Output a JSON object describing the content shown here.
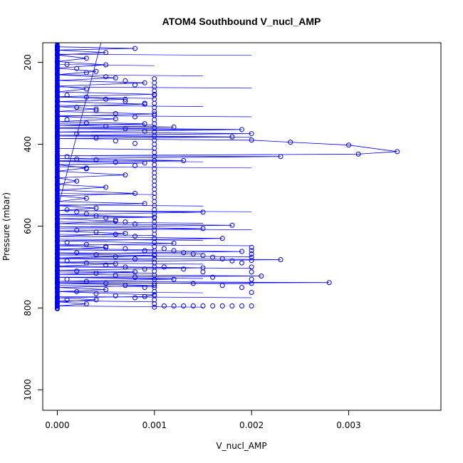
{
  "chart_data": {
    "type": "scatter",
    "title": "ATOM4 Southbound V_nucl_AMP",
    "xlabel": "V_nucl_AMP",
    "ylabel": "Pressure (mbar)",
    "xlim": [
      -0.00015,
      0.00395
    ],
    "ylim": [
      1050,
      152
    ],
    "y_reversed": true,
    "x_ticks": [
      0.0,
      0.001,
      0.002,
      0.003
    ],
    "x_tick_labels": [
      "0.000",
      "0.001",
      "0.002",
      "0.003"
    ],
    "y_ticks": [
      200,
      400,
      600,
      800,
      1000
    ],
    "y_tick_labels": [
      "200",
      "400",
      "600",
      "800",
      "1000"
    ],
    "grid": false,
    "legend": "none",
    "marker": "open-circle",
    "line": true,
    "series_color": "#0000ff",
    "series": [
      {
        "values": [
          [
            0.0,
            800
          ],
          [
            0.0,
            795
          ],
          [
            0.0003,
            790
          ],
          [
            0.0,
            785
          ],
          [
            0.0004,
            780
          ],
          [
            0.0,
            775
          ],
          [
            0.0009,
            772
          ],
          [
            0.001,
            768
          ],
          [
            0.0,
            760
          ],
          [
            0.0005,
            755
          ],
          [
            0.0,
            750
          ],
          [
            0.001,
            745
          ],
          [
            0.0,
            740
          ],
          [
            0.0028,
            738
          ],
          [
            0.0,
            735
          ],
          [
            0.0012,
            730
          ],
          [
            0.0,
            725
          ],
          [
            0.0021,
            722
          ],
          [
            0.0,
            718
          ],
          [
            0.0008,
            712
          ],
          [
            0.0,
            708
          ],
          [
            0.0015,
            702
          ],
          [
            0.0,
            698
          ],
          [
            0.0006,
            692
          ],
          [
            0.0,
            688
          ],
          [
            0.0023,
            682
          ],
          [
            0.0,
            678
          ],
          [
            0.001,
            672
          ],
          [
            0.0,
            668
          ],
          [
            0.0019,
            662
          ],
          [
            0.0,
            658
          ],
          [
            0.0005,
            652
          ],
          [
            0.0,
            648
          ],
          [
            0.0012,
            642
          ],
          [
            0.0,
            636
          ],
          [
            0.0017,
            630
          ],
          [
            0.0,
            625
          ],
          [
            0.0007,
            618
          ],
          [
            0.0,
            612
          ],
          [
            0.0015,
            606
          ],
          [
            0.0,
            602
          ],
          [
            0.0018,
            598
          ],
          [
            0.0,
            594
          ],
          [
            0.0006,
            588
          ],
          [
            0.0,
            582
          ],
          [
            0.001,
            578
          ],
          [
            0.0,
            572
          ],
          [
            0.0015,
            566
          ],
          [
            0.0,
            562
          ],
          [
            0.0004,
            556
          ],
          [
            0.0,
            550
          ],
          [
            0.0009,
            545
          ],
          [
            0.0,
            540
          ],
          [
            0.0003,
            532
          ],
          [
            0.0,
            526
          ],
          [
            0.0008,
            520
          ],
          [
            0.0,
            512
          ],
          [
            0.0005,
            505
          ],
          [
            0.0,
            498
          ],
          [
            0.0002,
            490
          ],
          [
            0.0,
            482
          ],
          [
            0.0007,
            475
          ],
          [
            0.0,
            466
          ],
          [
            0.0003,
            458
          ],
          [
            0.0,
            450
          ],
          [
            0.0009,
            446
          ],
          [
            0.0,
            442
          ],
          [
            0.0013,
            440
          ],
          [
            0.0,
            435
          ],
          [
            0.0023,
            430
          ],
          [
            0.0,
            428
          ],
          [
            0.0031,
            424
          ],
          [
            0.0035,
            418
          ],
          [
            0.003,
            402
          ],
          [
            0.0024,
            395
          ],
          [
            0.002,
            390
          ],
          [
            0.0,
            386
          ],
          [
            0.0018,
            382
          ],
          [
            0.0,
            378
          ],
          [
            0.002,
            374
          ],
          [
            0.0,
            370
          ],
          [
            0.0019,
            364
          ],
          [
            0.0,
            360
          ],
          [
            0.0012,
            358
          ],
          [
            0.0,
            354
          ],
          [
            0.0009,
            350
          ],
          [
            0.0,
            345
          ],
          [
            0.0006,
            338
          ],
          [
            0.0,
            332
          ],
          [
            0.001,
            326
          ],
          [
            0.0,
            320
          ],
          [
            0.0004,
            314
          ],
          [
            0.0,
            308
          ],
          [
            0.0009,
            302
          ],
          [
            0.0,
            296
          ],
          [
            0.0007,
            290
          ],
          [
            0.0,
            284
          ],
          [
            0.001,
            278
          ],
          [
            0.0,
            272
          ],
          [
            0.0003,
            265
          ],
          [
            0.0,
            258
          ],
          [
            0.0009,
            250
          ],
          [
            0.0,
            244
          ],
          [
            0.0006,
            238
          ],
          [
            0.0,
            230
          ],
          [
            0.0004,
            222
          ],
          [
            0.0,
            214
          ],
          [
            0.0005,
            206
          ],
          [
            0.0,
            198
          ],
          [
            0.0003,
            190
          ],
          [
            0.0,
            182
          ],
          [
            0.0005,
            176
          ],
          [
            0.0,
            170
          ],
          [
            0.0008,
            166
          ],
          [
            0.0,
            162
          ]
        ]
      }
    ],
    "extra_points": [
      [
        0.001,
        240
      ],
      [
        0.001,
        250
      ],
      [
        0.001,
        260
      ],
      [
        0.001,
        270
      ],
      [
        0.001,
        280
      ],
      [
        0.001,
        290
      ],
      [
        0.001,
        300
      ],
      [
        0.001,
        310
      ],
      [
        0.001,
        320
      ],
      [
        0.001,
        330
      ],
      [
        0.001,
        340
      ],
      [
        0.001,
        350
      ],
      [
        0.001,
        360
      ],
      [
        0.001,
        370
      ],
      [
        0.001,
        380
      ],
      [
        0.001,
        390
      ],
      [
        0.001,
        400
      ],
      [
        0.001,
        410
      ],
      [
        0.001,
        420
      ],
      [
        0.001,
        430
      ],
      [
        0.001,
        440
      ],
      [
        0.001,
        450
      ],
      [
        0.001,
        460
      ],
      [
        0.001,
        470
      ],
      [
        0.001,
        480
      ],
      [
        0.001,
        490
      ],
      [
        0.001,
        500
      ],
      [
        0.001,
        510
      ],
      [
        0.001,
        520
      ],
      [
        0.001,
        530
      ],
      [
        0.001,
        540
      ],
      [
        0.001,
        550
      ],
      [
        0.001,
        560
      ],
      [
        0.001,
        570
      ],
      [
        0.001,
        580
      ],
      [
        0.001,
        590
      ],
      [
        0.001,
        600
      ],
      [
        0.001,
        610
      ],
      [
        0.001,
        620
      ],
      [
        0.001,
        630
      ],
      [
        0.001,
        640
      ],
      [
        0.001,
        650
      ],
      [
        0.001,
        660
      ],
      [
        0.001,
        670
      ],
      [
        0.001,
        680
      ],
      [
        0.001,
        690
      ],
      [
        0.001,
        700
      ],
      [
        0.001,
        710
      ],
      [
        0.001,
        720
      ],
      [
        0.001,
        730
      ],
      [
        0.001,
        740
      ],
      [
        0.001,
        750
      ],
      [
        0.001,
        760
      ],
      [
        0.001,
        770
      ],
      [
        0.001,
        780
      ],
      [
        0.001,
        790
      ],
      [
        0.001,
        798
      ],
      [
        0.0011,
        795
      ],
      [
        0.0012,
        795
      ],
      [
        0.0013,
        795
      ],
      [
        0.0014,
        795
      ],
      [
        0.0015,
        795
      ],
      [
        0.0016,
        795
      ],
      [
        0.0017,
        795
      ],
      [
        0.0018,
        795
      ],
      [
        0.0019,
        795
      ],
      [
        0.002,
        795
      ],
      [
        0.002,
        652
      ],
      [
        0.002,
        660
      ],
      [
        0.002,
        668
      ],
      [
        0.002,
        676
      ],
      [
        0.002,
        684
      ],
      [
        0.002,
        700
      ],
      [
        0.002,
        712
      ],
      [
        0.002,
        730
      ],
      [
        0.002,
        740
      ],
      [
        0.002,
        762
      ],
      [
        0.0011,
        655
      ],
      [
        0.0012,
        660
      ],
      [
        0.0013,
        665
      ],
      [
        0.0014,
        668
      ],
      [
        0.0015,
        672
      ],
      [
        0.0016,
        676
      ],
      [
        0.0017,
        680
      ],
      [
        0.0018,
        685
      ],
      [
        0.0019,
        690
      ],
      [
        0.0011,
        700
      ],
      [
        0.0013,
        705
      ],
      [
        0.0015,
        712
      ],
      [
        0.0016,
        725
      ],
      [
        0.0014,
        740
      ],
      [
        0.0017,
        745
      ],
      [
        0.0019,
        750
      ],
      [
        0.0001,
        560
      ],
      [
        0.0002,
        565
      ],
      [
        0.0003,
        570
      ],
      [
        0.0004,
        575
      ],
      [
        0.0005,
        580
      ],
      [
        0.0006,
        585
      ],
      [
        0.0007,
        590
      ],
      [
        0.0008,
        595
      ],
      [
        0.0002,
        610
      ],
      [
        0.0004,
        615
      ],
      [
        0.0006,
        620
      ],
      [
        0.0008,
        625
      ],
      [
        0.0001,
        640
      ],
      [
        0.0003,
        645
      ],
      [
        0.0005,
        650
      ],
      [
        0.0007,
        655
      ],
      [
        0.0009,
        660
      ],
      [
        0.0002,
        665
      ],
      [
        0.0004,
        670
      ],
      [
        0.0006,
        675
      ],
      [
        0.0008,
        680
      ],
      [
        0.0001,
        685
      ],
      [
        0.0003,
        690
      ],
      [
        0.0005,
        695
      ],
      [
        0.0007,
        700
      ],
      [
        0.0009,
        705
      ],
      [
        0.0002,
        710
      ],
      [
        0.0004,
        715
      ],
      [
        0.0006,
        720
      ],
      [
        0.0008,
        725
      ],
      [
        0.0001,
        730
      ],
      [
        0.0003,
        735
      ],
      [
        0.0005,
        740
      ],
      [
        0.0007,
        745
      ],
      [
        0.0009,
        750
      ],
      [
        0.0002,
        760
      ],
      [
        0.0004,
        765
      ],
      [
        0.0006,
        770
      ],
      [
        0.0008,
        775
      ],
      [
        0.0001,
        780
      ],
      [
        0.0001,
        280
      ],
      [
        0.0003,
        285
      ],
      [
        0.0005,
        290
      ],
      [
        0.0007,
        295
      ],
      [
        0.0009,
        300
      ],
      [
        0.0002,
        310
      ],
      [
        0.0004,
        318
      ],
      [
        0.0006,
        325
      ],
      [
        0.0008,
        333
      ],
      [
        0.0001,
        340
      ],
      [
        0.0003,
        348
      ],
      [
        0.0005,
        356
      ],
      [
        0.0007,
        362
      ],
      [
        0.0009,
        368
      ],
      [
        0.0002,
        375
      ],
      [
        0.0004,
        385
      ],
      [
        0.0006,
        392
      ],
      [
        0.0008,
        398
      ],
      [
        0.0001,
        205
      ],
      [
        0.0002,
        215
      ],
      [
        0.0003,
        225
      ],
      [
        0.0005,
        235
      ],
      [
        0.0007,
        245
      ],
      [
        0.0008,
        255
      ],
      [
        0.0001,
        430
      ],
      [
        0.0002,
        436
      ],
      [
        0.0004,
        438
      ],
      [
        0.0006,
        444
      ],
      [
        0.0008,
        452
      ],
      [
        0.0003,
        460
      ]
    ]
  }
}
